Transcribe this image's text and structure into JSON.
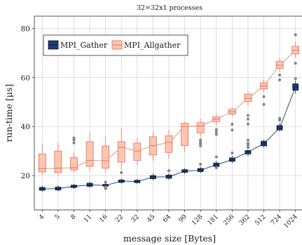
{
  "chart_data": {
    "type": "boxplot",
    "title": "32=32x1 processes",
    "xlabel": "message size [Bytes]",
    "ylabel": "run-time [μs]",
    "ylim": [
      6,
      85
    ],
    "yticks": [
      20,
      40,
      60,
      80
    ],
    "grid": true,
    "legend": "top-left",
    "categories": [
      "4",
      "5",
      "8",
      "11",
      "16",
      "22",
      "32",
      "45",
      "64",
      "90",
      "128",
      "181",
      "256",
      "362",
      "512",
      "724",
      "1024"
    ],
    "series": [
      {
        "name": "MPI_Gather",
        "color": "#1f3d72",
        "boxes": [
          {
            "q1": 14.0,
            "med": 14.5,
            "q3": 15.2,
            "lo": 13.4,
            "hi": 15.9,
            "outliers": []
          },
          {
            "q1": 14.1,
            "med": 14.7,
            "q3": 15.3,
            "lo": 13.6,
            "hi": 16.0,
            "outliers": []
          },
          {
            "q1": 15.1,
            "med": 15.6,
            "q3": 16.1,
            "lo": 14.6,
            "hi": 16.6,
            "outliers": []
          },
          {
            "q1": 15.6,
            "med": 16.2,
            "q3": 16.9,
            "lo": 15.0,
            "hi": 17.5,
            "outliers": []
          },
          {
            "q1": 15.7,
            "med": 16.0,
            "q3": 16.4,
            "lo": 15.2,
            "hi": 16.9,
            "outliers": [
              14.7,
              15.3,
              17.3
            ]
          },
          {
            "q1": 17.2,
            "med": 17.7,
            "q3": 18.2,
            "lo": 16.7,
            "hi": 18.8,
            "outliers": [
              21.2
            ]
          },
          {
            "q1": 17.1,
            "med": 17.6,
            "q3": 18.1,
            "lo": 16.6,
            "hi": 18.6,
            "outliers": []
          },
          {
            "q1": 18.7,
            "med": 19.4,
            "q3": 20.0,
            "lo": 18.1,
            "hi": 20.8,
            "outliers": []
          },
          {
            "q1": 18.9,
            "med": 19.5,
            "q3": 20.2,
            "lo": 18.2,
            "hi": 21.0,
            "outliers": [
              22.0
            ]
          },
          {
            "q1": 21.3,
            "med": 21.8,
            "q3": 22.4,
            "lo": 20.7,
            "hi": 23.0,
            "outliers": []
          },
          {
            "q1": 21.6,
            "med": 22.2,
            "q3": 22.9,
            "lo": 21.0,
            "hi": 23.6,
            "outliers": [
              24.6
            ]
          },
          {
            "q1": 23.7,
            "med": 24.4,
            "q3": 25.1,
            "lo": 22.9,
            "hi": 26.0,
            "outliers": [
              23.2,
              27.6
            ]
          },
          {
            "q1": 25.8,
            "med": 26.5,
            "q3": 27.2,
            "lo": 25.1,
            "hi": 28.0,
            "outliers": [
              29.2
            ]
          },
          {
            "q1": 28.8,
            "med": 29.6,
            "q3": 30.2,
            "lo": 28.0,
            "hi": 30.6,
            "outliers": [
              31.5,
              32.6,
              33.2,
              34.5
            ]
          },
          {
            "q1": 32.1,
            "med": 33.0,
            "q3": 34.0,
            "lo": 31.4,
            "hi": 34.6,
            "outliers": []
          },
          {
            "q1": 38.6,
            "med": 39.4,
            "q3": 40.4,
            "lo": 38.0,
            "hi": 41.3,
            "outliers": [
              42.6,
              43.3
            ]
          },
          {
            "q1": 54.8,
            "med": 56.1,
            "q3": 57.4,
            "lo": 53.5,
            "hi": 58.6,
            "outliers": [
              59.5
            ]
          }
        ]
      },
      {
        "name": "MPI_Allgather",
        "color": "#f08a6c",
        "boxes": [
          {
            "q1": 21.5,
            "med": 22.8,
            "q3": 28.8,
            "lo": 20.2,
            "hi": 32.9,
            "outliers": []
          },
          {
            "q1": 21.2,
            "med": 23.0,
            "q3": 30.0,
            "lo": 20.0,
            "hi": 33.4,
            "outliers": []
          },
          {
            "q1": 22.3,
            "med": 23.2,
            "q3": 27.3,
            "lo": 21.4,
            "hi": 29.2,
            "outliers": [
              33.3,
              34.5,
              35.3
            ]
          },
          {
            "q1": 23.8,
            "med": 26.2,
            "q3": 33.8,
            "lo": 22.0,
            "hi": 37.5,
            "outliers": []
          },
          {
            "q1": 23.0,
            "med": 26.0,
            "q3": 32.0,
            "lo": 21.6,
            "hi": 35.8,
            "outliers": []
          },
          {
            "q1": 25.5,
            "med": 31.5,
            "q3": 33.8,
            "lo": 22.3,
            "hi": 39.3,
            "outliers": []
          },
          {
            "q1": 26.2,
            "med": 30.0,
            "q3": 33.2,
            "lo": 24.2,
            "hi": 35.4,
            "outliers": []
          },
          {
            "q1": 28.4,
            "med": 32.2,
            "q3": 35.8,
            "lo": 26.0,
            "hi": 37.8,
            "outliers": []
          },
          {
            "q1": 29.4,
            "med": 33.5,
            "q3": 36.2,
            "lo": 26.8,
            "hi": 38.6,
            "outliers": []
          },
          {
            "q1": 32.2,
            "med": 40.0,
            "q3": 41.3,
            "lo": 29.7,
            "hi": 41.9,
            "outliers": []
          },
          {
            "q1": 37.4,
            "med": 40.2,
            "q3": 41.6,
            "lo": 35.6,
            "hi": 43.1,
            "outliers": [
              32.1,
              33.0,
              33.8,
              34.5
            ]
          },
          {
            "q1": 42.0,
            "med": 43.0,
            "q3": 44.0,
            "lo": 40.5,
            "hi": 45.2,
            "outliers": [
              36.8,
              37.8,
              38.8
            ]
          },
          {
            "q1": 45.1,
            "med": 46.0,
            "q3": 47.0,
            "lo": 44.2,
            "hi": 47.9,
            "outliers": [
              38.6,
              40.9
            ]
          },
          {
            "q1": 50.2,
            "med": 51.5,
            "q3": 53.2,
            "lo": 48.5,
            "hi": 54.2,
            "outliers": [
              41.0,
              43.0,
              44.5
            ]
          },
          {
            "q1": 55.3,
            "med": 56.5,
            "q3": 57.8,
            "lo": 54.0,
            "hi": 59.2,
            "outliers": [
              49.0,
              52.2
            ]
          },
          {
            "q1": 63.7,
            "med": 65.0,
            "q3": 66.6,
            "lo": 62.3,
            "hi": 67.9,
            "outliers": [
              59.0,
              61.0
            ]
          },
          {
            "q1": 69.6,
            "med": 71.0,
            "q3": 72.7,
            "lo": 68.0,
            "hi": 74.6,
            "outliers": [
              65.8,
              77.4
            ]
          }
        ]
      }
    ]
  }
}
